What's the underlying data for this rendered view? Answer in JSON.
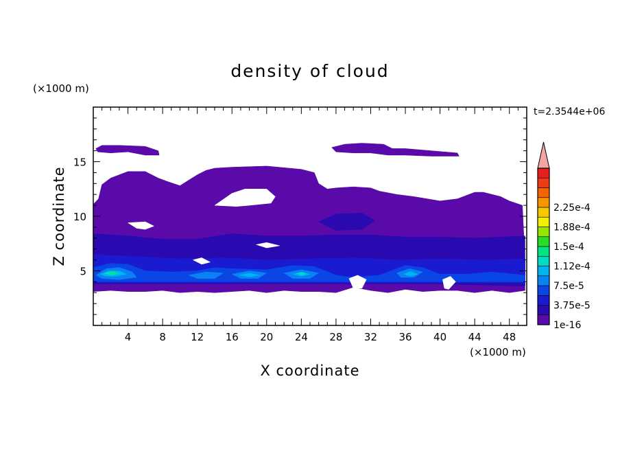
{
  "chart_data": {
    "type": "contour",
    "title": "density of cloud",
    "xlabel": "X coordinate",
    "ylabel": "Z coordinate",
    "x_unit": "(×1000 m)",
    "y_unit": "(×1000 m)",
    "time_label": "t=2.3544e+06",
    "xlim": [
      0,
      50
    ],
    "ylim": [
      0,
      20
    ],
    "x_ticks": [
      4,
      8,
      12,
      16,
      20,
      24,
      28,
      32,
      36,
      40,
      44,
      48
    ],
    "y_ticks": [
      5,
      10,
      15
    ],
    "colorbar": {
      "labels": [
        "1e-16",
        "3.75e-5",
        "7.5e-5",
        "1.12e-4",
        "1.5e-4",
        "1.88e-4",
        "2.25e-4"
      ],
      "colors": [
        "#5a0aa8",
        "#2a0ab0",
        "#1a1ad0",
        "#0a46e6",
        "#0a82f5",
        "#00b4f0",
        "#00dcc8",
        "#00e682",
        "#28dc28",
        "#96e600",
        "#f0f000",
        "#f5c800",
        "#f59600",
        "#f56400",
        "#f03c14",
        "#e61e1e"
      ],
      "extend_color": "#f4a5a5"
    },
    "regions": [
      {
        "level": 0,
        "polygon": [
          [
            0,
            11.1
          ],
          [
            0.6,
            11.6
          ],
          [
            1,
            12.9
          ],
          [
            2,
            13.5
          ],
          [
            3,
            13.8
          ],
          [
            4,
            14.1
          ],
          [
            6,
            14.1
          ],
          [
            7.5,
            13.5
          ],
          [
            8.5,
            13.2
          ],
          [
            10,
            12.8
          ],
          [
            11,
            13.3
          ],
          [
            12,
            13.8
          ],
          [
            13,
            14.2
          ],
          [
            14,
            14.4
          ],
          [
            16,
            14.5
          ],
          [
            20,
            14.6
          ],
          [
            24,
            14.3
          ],
          [
            25.5,
            14
          ],
          [
            26,
            13
          ],
          [
            27,
            12.5
          ],
          [
            28,
            12.6
          ],
          [
            30,
            12.7
          ],
          [
            32,
            12.6
          ],
          [
            33,
            12.3
          ],
          [
            35,
            12
          ],
          [
            37,
            11.8
          ],
          [
            40,
            11.4
          ],
          [
            42,
            11.6
          ],
          [
            44,
            12.2
          ],
          [
            45,
            12.2
          ],
          [
            47,
            11.8
          ],
          [
            48,
            11.4
          ],
          [
            49.5,
            11
          ],
          [
            49.8,
            6
          ],
          [
            49.8,
            3.2
          ],
          [
            48,
            3
          ],
          [
            46,
            3.2
          ],
          [
            44,
            3
          ],
          [
            42,
            3.2
          ],
          [
            40,
            3.2
          ],
          [
            38,
            3.1
          ],
          [
            36,
            3.3
          ],
          [
            34,
            3
          ],
          [
            32,
            3.2
          ],
          [
            30,
            3.5
          ],
          [
            28,
            3
          ],
          [
            26,
            3.1
          ],
          [
            24,
            3.1
          ],
          [
            22,
            3.2
          ],
          [
            20,
            3
          ],
          [
            18,
            3.2
          ],
          [
            16,
            3.1
          ],
          [
            14,
            3
          ],
          [
            12,
            3.1
          ],
          [
            10,
            3
          ],
          [
            8,
            3.2
          ],
          [
            6,
            3.1
          ],
          [
            4,
            3.1
          ],
          [
            2,
            3.2
          ],
          [
            0,
            3.1
          ]
        ]
      },
      {
        "level": 0,
        "polygon": [
          [
            0.3,
            16.2
          ],
          [
            1,
            16.5
          ],
          [
            3,
            16.5
          ],
          [
            6,
            16.4
          ],
          [
            7.5,
            16
          ],
          [
            7.6,
            15.6
          ],
          [
            6,
            15.6
          ],
          [
            4,
            15.9
          ],
          [
            2,
            15.8
          ],
          [
            0.5,
            15.9
          ]
        ]
      },
      {
        "level": 0,
        "polygon": [
          [
            27.5,
            16.3
          ],
          [
            29,
            16.6
          ],
          [
            31,
            16.7
          ],
          [
            33.5,
            16.6
          ],
          [
            34.5,
            16.2
          ],
          [
            36,
            16.2
          ],
          [
            39,
            16
          ],
          [
            42,
            15.8
          ],
          [
            42.2,
            15.5
          ],
          [
            39,
            15.5
          ],
          [
            36,
            15.6
          ],
          [
            34,
            15.6
          ],
          [
            32,
            15.8
          ],
          [
            30,
            15.8
          ],
          [
            28,
            15.9
          ]
        ]
      },
      {
        "level": 1,
        "polygon": [
          [
            0,
            8.4
          ],
          [
            4,
            8.2
          ],
          [
            8,
            7.9
          ],
          [
            12,
            7.9
          ],
          [
            16,
            8.4
          ],
          [
            20,
            8.2
          ],
          [
            24,
            8.2
          ],
          [
            28,
            8.3
          ],
          [
            32,
            8.3
          ],
          [
            36,
            8.1
          ],
          [
            40,
            8.1
          ],
          [
            44,
            8
          ],
          [
            49.8,
            8.2
          ],
          [
            49.8,
            3.6
          ],
          [
            40,
            3.8
          ],
          [
            32,
            3.8
          ],
          [
            24,
            3.8
          ],
          [
            16,
            3.8
          ],
          [
            8,
            3.8
          ],
          [
            0,
            3.8
          ]
        ]
      },
      {
        "level": 1,
        "polygon": [
          [
            26,
            9.5
          ],
          [
            28,
            10.2
          ],
          [
            31,
            10.3
          ],
          [
            32.5,
            9.6
          ],
          [
            31,
            8.8
          ],
          [
            28,
            8.7
          ]
        ]
      },
      {
        "level": 2,
        "polygon": [
          [
            0,
            6.5
          ],
          [
            5,
            6.3
          ],
          [
            10,
            6.1
          ],
          [
            15,
            6.2
          ],
          [
            20,
            6.0
          ],
          [
            25,
            6.1
          ],
          [
            30,
            6.2
          ],
          [
            35,
            6.0
          ],
          [
            40,
            6.1
          ],
          [
            45,
            6.0
          ],
          [
            49.8,
            6.1
          ],
          [
            49.8,
            3.9
          ],
          [
            40,
            3.9
          ],
          [
            30,
            3.9
          ],
          [
            20,
            3.9
          ],
          [
            10,
            3.9
          ],
          [
            0,
            3.9
          ]
        ]
      },
      {
        "level": 3,
        "polygon": [
          [
            0,
            5.3
          ],
          [
            2,
            5.7
          ],
          [
            4,
            5.6
          ],
          [
            6,
            5.0
          ],
          [
            9,
            4.9
          ],
          [
            12,
            5.0
          ],
          [
            14,
            5.3
          ],
          [
            16,
            5.2
          ],
          [
            20,
            5.1
          ],
          [
            23,
            5.5
          ],
          [
            25.5,
            5.4
          ],
          [
            28,
            4.6
          ],
          [
            30,
            4.4
          ],
          [
            33,
            4.6
          ],
          [
            36,
            5.5
          ],
          [
            38,
            5.3
          ],
          [
            40,
            4.7
          ],
          [
            43,
            4.7
          ],
          [
            46,
            4.9
          ],
          [
            49.8,
            4.6
          ],
          [
            49.8,
            4.0
          ],
          [
            40,
            4.0
          ],
          [
            30,
            4.0
          ],
          [
            20,
            4.0
          ],
          [
            10,
            4.0
          ],
          [
            0,
            4.0
          ]
        ]
      },
      {
        "level": 4,
        "polygon": [
          [
            0.3,
            4.6
          ],
          [
            1.5,
            5.2
          ],
          [
            3,
            5.3
          ],
          [
            4.5,
            4.9
          ],
          [
            5,
            4.4
          ],
          [
            3,
            4.2
          ],
          [
            1,
            4.3
          ]
        ]
      },
      {
        "level": 4,
        "polygon": [
          [
            11,
            4.6
          ],
          [
            13,
            4.9
          ],
          [
            15,
            4.8
          ],
          [
            14,
            4.3
          ],
          [
            12,
            4.3
          ]
        ]
      },
      {
        "level": 4,
        "polygon": [
          [
            16,
            4.7
          ],
          [
            18,
            5.0
          ],
          [
            20,
            4.8
          ],
          [
            19,
            4.3
          ],
          [
            17,
            4.3
          ]
        ]
      },
      {
        "level": 4,
        "polygon": [
          [
            22,
            4.8
          ],
          [
            24,
            5.1
          ],
          [
            26,
            4.8
          ],
          [
            25,
            4.3
          ],
          [
            23,
            4.3
          ]
        ]
      },
      {
        "level": 4,
        "polygon": [
          [
            35,
            4.8
          ],
          [
            36.5,
            5.2
          ],
          [
            38,
            4.9
          ],
          [
            37,
            4.4
          ],
          [
            35.5,
            4.4
          ]
        ]
      },
      {
        "level": 5,
        "polygon": [
          [
            0.8,
            4.7
          ],
          [
            1.8,
            5.0
          ],
          [
            3,
            5.0
          ],
          [
            3.8,
            4.7
          ],
          [
            2.6,
            4.5
          ],
          [
            1.4,
            4.5
          ]
        ]
      },
      {
        "level": 5,
        "polygon": [
          [
            16.8,
            4.6
          ],
          [
            18,
            4.8
          ],
          [
            19.2,
            4.6
          ],
          [
            18,
            4.45
          ]
        ]
      },
      {
        "level": 5,
        "polygon": [
          [
            23,
            4.7
          ],
          [
            24,
            4.9
          ],
          [
            25,
            4.7
          ],
          [
            24,
            4.5
          ]
        ]
      },
      {
        "level": 5,
        "polygon": [
          [
            35.8,
            4.7
          ],
          [
            36.6,
            4.95
          ],
          [
            37.4,
            4.7
          ],
          [
            36.6,
            4.5
          ]
        ]
      },
      {
        "level": 6,
        "polygon": [
          [
            1.2,
            4.75
          ],
          [
            2.2,
            4.95
          ],
          [
            3,
            4.8
          ],
          [
            2.2,
            4.6
          ]
        ]
      },
      {
        "level": 6,
        "polygon": [
          [
            23.5,
            4.75
          ],
          [
            24.1,
            4.85
          ],
          [
            24.6,
            4.72
          ],
          [
            24,
            4.62
          ]
        ]
      },
      {
        "level": 7,
        "polygon": [
          [
            1.8,
            4.8
          ],
          [
            2.3,
            4.9
          ],
          [
            2.7,
            4.8
          ],
          [
            2.2,
            4.7
          ]
        ]
      },
      {
        "level": -1,
        "polygon": [
          [
            14,
            11
          ],
          [
            16,
            12.1
          ],
          [
            17.5,
            12.5
          ],
          [
            20,
            12.5
          ],
          [
            21,
            11.8
          ],
          [
            20.5,
            11.2
          ],
          [
            18,
            11
          ],
          [
            16.5,
            10.9
          ]
        ]
      },
      {
        "level": -1,
        "polygon": [
          [
            4,
            9.4
          ],
          [
            6,
            9.5
          ],
          [
            7,
            9.1
          ],
          [
            6,
            8.8
          ],
          [
            5,
            8.9
          ]
        ]
      },
      {
        "level": -1,
        "polygon": [
          [
            18.8,
            7.4
          ],
          [
            20,
            7.6
          ],
          [
            21.5,
            7.3
          ],
          [
            20,
            7.1
          ]
        ]
      },
      {
        "level": -1,
        "polygon": [
          [
            11.5,
            6.0
          ],
          [
            12.5,
            6.2
          ],
          [
            13.5,
            5.8
          ],
          [
            12.5,
            5.6
          ]
        ]
      },
      {
        "level": -1,
        "polygon": [
          [
            29.5,
            4.3
          ],
          [
            30.5,
            4.6
          ],
          [
            31.5,
            4.2
          ],
          [
            31,
            3.4
          ],
          [
            30,
            3.4
          ]
        ]
      },
      {
        "level": -1,
        "polygon": [
          [
            40.3,
            4.2
          ],
          [
            41.2,
            4.5
          ],
          [
            41.8,
            4.0
          ],
          [
            41,
            3.3
          ],
          [
            40.5,
            3.4
          ]
        ]
      }
    ]
  }
}
